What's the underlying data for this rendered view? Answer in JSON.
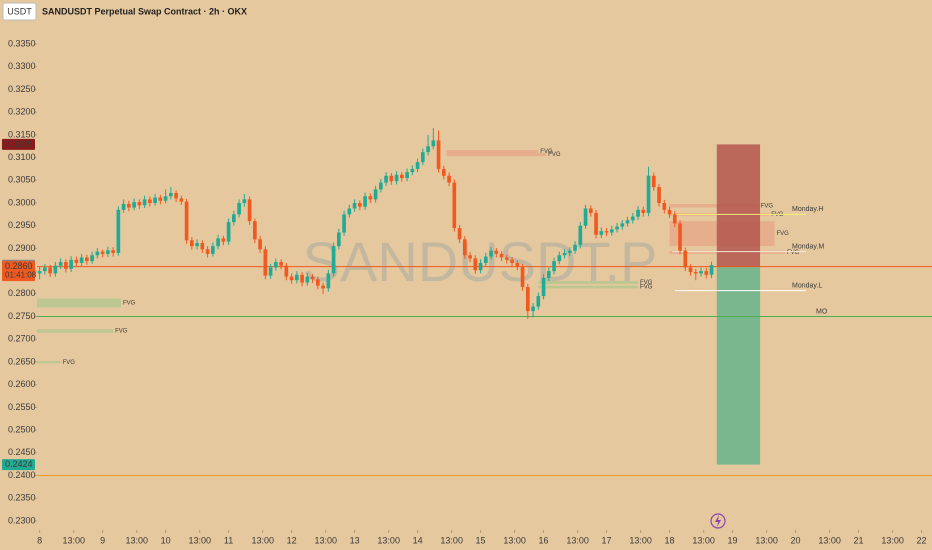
{
  "chart_data": {
    "type": "candlestick",
    "title": "SANDUSDT Perpetual Swap Contract · 2h · OKX",
    "currency": "USDT",
    "watermark": "SANDUSDT.P",
    "up_color": "#22ab94",
    "down_color": "#f0591f",
    "grid": false,
    "xlim": [
      -1,
      340
    ],
    "xticks": [
      {
        "value": 0,
        "label": "8"
      },
      {
        "value": 13,
        "label": "13:00"
      },
      {
        "value": 24,
        "label": "9"
      },
      {
        "value": 37,
        "label": "13:00"
      },
      {
        "value": 48,
        "label": "10"
      },
      {
        "value": 61,
        "label": "13:00"
      },
      {
        "value": 72,
        "label": "11"
      },
      {
        "value": 85,
        "label": "13:00"
      },
      {
        "value": 96,
        "label": "12"
      },
      {
        "value": 109,
        "label": "13:00"
      },
      {
        "value": 120,
        "label": "13"
      },
      {
        "value": 133,
        "label": "13:00"
      },
      {
        "value": 144,
        "label": "14"
      },
      {
        "value": 157,
        "label": "13:00"
      },
      {
        "value": 168,
        "label": "15"
      },
      {
        "value": 181,
        "label": "13:00"
      },
      {
        "value": 192,
        "label": "16"
      },
      {
        "value": 205,
        "label": "13:00"
      },
      {
        "value": 216,
        "label": "17"
      },
      {
        "value": 229,
        "label": "13:00"
      },
      {
        "value": 240,
        "label": "18"
      },
      {
        "value": 253,
        "label": "13:00"
      },
      {
        "value": 264,
        "label": "19"
      },
      {
        "value": 277,
        "label": "13:00"
      },
      {
        "value": 288,
        "label": "20"
      },
      {
        "value": 301,
        "label": "13:00"
      },
      {
        "value": 312,
        "label": "21"
      },
      {
        "value": 325,
        "label": "13:00"
      },
      {
        "value": 336,
        "label": "22"
      }
    ],
    "ylim": [
      0.228,
      0.3447
    ],
    "yticks": [
      {
        "value": 0.335,
        "label": "0.3350"
      },
      {
        "value": 0.33,
        "label": "0.3300"
      },
      {
        "value": 0.325,
        "label": "0.3250"
      },
      {
        "value": 0.32,
        "label": "0.3200"
      },
      {
        "value": 0.315,
        "label": "0.3150"
      },
      {
        "value": 0.31,
        "label": "0.3100"
      },
      {
        "value": 0.305,
        "label": "0.3050"
      },
      {
        "value": 0.3,
        "label": "0.3000"
      },
      {
        "value": 0.295,
        "label": "0.2950"
      },
      {
        "value": 0.29,
        "label": "0.2900"
      },
      {
        "value": 0.285,
        "label": "0.2850"
      },
      {
        "value": 0.28,
        "label": "0.2800"
      },
      {
        "value": 0.275,
        "label": "0.2750"
      },
      {
        "value": 0.27,
        "label": "0.2700"
      },
      {
        "value": 0.265,
        "label": "0.2650"
      },
      {
        "value": 0.26,
        "label": "0.2600"
      },
      {
        "value": 0.255,
        "label": "0.2550"
      },
      {
        "value": 0.25,
        "label": "0.2500"
      },
      {
        "value": 0.245,
        "label": "0.2450"
      },
      {
        "value": 0.24,
        "label": "0.2400"
      },
      {
        "value": 0.235,
        "label": "0.2350"
      },
      {
        "value": 0.23,
        "label": "0.2300"
      }
    ],
    "candles": [
      [
        0,
        0.2845,
        0.286,
        0.2832,
        0.285
      ],
      [
        2,
        0.285,
        0.2866,
        0.2842,
        0.2858
      ],
      [
        4,
        0.2858,
        0.2864,
        0.2837,
        0.2845
      ],
      [
        6,
        0.2845,
        0.287,
        0.2838,
        0.2862
      ],
      [
        8,
        0.2862,
        0.2878,
        0.2855,
        0.287
      ],
      [
        10,
        0.287,
        0.2876,
        0.2847,
        0.2855
      ],
      [
        12,
        0.2855,
        0.2883,
        0.2848,
        0.2875
      ],
      [
        14,
        0.2875,
        0.2882,
        0.286,
        0.2868
      ],
      [
        16,
        0.2868,
        0.2888,
        0.2861,
        0.288
      ],
      [
        18,
        0.288,
        0.2886,
        0.2864,
        0.2872
      ],
      [
        20,
        0.2872,
        0.2893,
        0.2866,
        0.2885
      ],
      [
        22,
        0.2885,
        0.2901,
        0.2878,
        0.2893
      ],
      [
        24,
        0.2893,
        0.2898,
        0.288,
        0.2888
      ],
      [
        26,
        0.2888,
        0.2904,
        0.2881,
        0.2896
      ],
      [
        28,
        0.2896,
        0.2903,
        0.2882,
        0.289
      ],
      [
        30,
        0.289,
        0.2993,
        0.2884,
        0.2985
      ],
      [
        32,
        0.2985,
        0.3008,
        0.2978,
        0.2998
      ],
      [
        34,
        0.2998,
        0.3005,
        0.2982,
        0.299
      ],
      [
        36,
        0.299,
        0.301,
        0.2984,
        0.3002
      ],
      [
        38,
        0.3002,
        0.3008,
        0.2987,
        0.2995
      ],
      [
        40,
        0.2995,
        0.3016,
        0.2989,
        0.3008
      ],
      [
        42,
        0.3008,
        0.3014,
        0.2992,
        0.3
      ],
      [
        44,
        0.3,
        0.302,
        0.2994,
        0.3012
      ],
      [
        46,
        0.3012,
        0.3018,
        0.2997,
        0.3005
      ],
      [
        48,
        0.3005,
        0.303,
        0.2999,
        0.3015
      ],
      [
        50,
        0.3015,
        0.3035,
        0.3008,
        0.3022
      ],
      [
        52,
        0.3022,
        0.3028,
        0.3002,
        0.301
      ],
      [
        54,
        0.301,
        0.3016,
        0.2996,
        0.3003
      ],
      [
        56,
        0.3003,
        0.3009,
        0.291,
        0.2918
      ],
      [
        58,
        0.2918,
        0.2925,
        0.2897,
        0.2905
      ],
      [
        60,
        0.2905,
        0.292,
        0.2898,
        0.2912
      ],
      [
        62,
        0.2912,
        0.2918,
        0.289,
        0.2898
      ],
      [
        64,
        0.2898,
        0.2905,
        0.288,
        0.2888
      ],
      [
        66,
        0.2888,
        0.2913,
        0.2882,
        0.2905
      ],
      [
        68,
        0.2905,
        0.293,
        0.2898,
        0.2922
      ],
      [
        70,
        0.2922,
        0.2928,
        0.2907,
        0.2915
      ],
      [
        72,
        0.2915,
        0.2966,
        0.2908,
        0.2958
      ],
      [
        74,
        0.2958,
        0.2983,
        0.295,
        0.2975
      ],
      [
        76,
        0.2975,
        0.3008,
        0.2968,
        0.3
      ],
      [
        78,
        0.3,
        0.302,
        0.2992,
        0.3008
      ],
      [
        80,
        0.3008,
        0.3014,
        0.2952,
        0.296
      ],
      [
        82,
        0.296,
        0.2966,
        0.2912,
        0.292
      ],
      [
        84,
        0.292,
        0.2927,
        0.289,
        0.2898
      ],
      [
        86,
        0.2898,
        0.2905,
        0.2832,
        0.284
      ],
      [
        88,
        0.284,
        0.2866,
        0.2833,
        0.2858
      ],
      [
        90,
        0.2858,
        0.2878,
        0.2851,
        0.287
      ],
      [
        92,
        0.287,
        0.2876,
        0.2854,
        0.2862
      ],
      [
        94,
        0.2862,
        0.2868,
        0.283,
        0.2838
      ],
      [
        96,
        0.2838,
        0.2845,
        0.2822,
        0.283
      ],
      [
        98,
        0.283,
        0.285,
        0.2823,
        0.2842
      ],
      [
        100,
        0.2842,
        0.2848,
        0.2817,
        0.2825
      ],
      [
        102,
        0.2825,
        0.2846,
        0.2818,
        0.2838
      ],
      [
        104,
        0.2838,
        0.2844,
        0.2824,
        0.2832
      ],
      [
        106,
        0.2832,
        0.2838,
        0.281,
        0.2818
      ],
      [
        108,
        0.2818,
        0.2824,
        0.28,
        0.2812
      ],
      [
        110,
        0.2812,
        0.2853,
        0.2805,
        0.2845
      ],
      [
        112,
        0.2845,
        0.2913,
        0.2838,
        0.2905
      ],
      [
        114,
        0.2905,
        0.2943,
        0.2898,
        0.2935
      ],
      [
        116,
        0.2935,
        0.2983,
        0.2928,
        0.2975
      ],
      [
        118,
        0.2975,
        0.2996,
        0.2968,
        0.2988
      ],
      [
        120,
        0.2988,
        0.3008,
        0.2981,
        0.3
      ],
      [
        122,
        0.3,
        0.3006,
        0.2984,
        0.2992
      ],
      [
        124,
        0.2992,
        0.3023,
        0.2985,
        0.3015
      ],
      [
        126,
        0.3015,
        0.3021,
        0.3,
        0.3008
      ],
      [
        128,
        0.3008,
        0.3038,
        0.3001,
        0.303
      ],
      [
        130,
        0.303,
        0.3053,
        0.3023,
        0.3045
      ],
      [
        132,
        0.3045,
        0.3068,
        0.3038,
        0.306
      ],
      [
        134,
        0.306,
        0.3066,
        0.304,
        0.3048
      ],
      [
        136,
        0.3048,
        0.307,
        0.3041,
        0.3062
      ],
      [
        138,
        0.3062,
        0.3068,
        0.3047,
        0.3055
      ],
      [
        140,
        0.3055,
        0.3076,
        0.3048,
        0.3068
      ],
      [
        142,
        0.3068,
        0.3083,
        0.3061,
        0.3075
      ],
      [
        144,
        0.3075,
        0.3098,
        0.3068,
        0.309
      ],
      [
        146,
        0.309,
        0.312,
        0.3083,
        0.3112
      ],
      [
        148,
        0.3112,
        0.315,
        0.3105,
        0.3125
      ],
      [
        150,
        0.3125,
        0.3165,
        0.3118,
        0.3138
      ],
      [
        152,
        0.3138,
        0.316,
        0.3067,
        0.3075
      ],
      [
        154,
        0.3075,
        0.3082,
        0.3052,
        0.306
      ],
      [
        156,
        0.306,
        0.3067,
        0.3037,
        0.3045
      ],
      [
        158,
        0.3045,
        0.3052,
        0.2937,
        0.2945
      ],
      [
        160,
        0.2945,
        0.2952,
        0.2912,
        0.292
      ],
      [
        162,
        0.292,
        0.2927,
        0.2877,
        0.2885
      ],
      [
        164,
        0.2885,
        0.2892,
        0.287,
        0.2878
      ],
      [
        166,
        0.2878,
        0.2885,
        0.2844,
        0.2852
      ],
      [
        168,
        0.2852,
        0.2876,
        0.2845,
        0.2868
      ],
      [
        170,
        0.2868,
        0.289,
        0.2861,
        0.2882
      ],
      [
        172,
        0.2882,
        0.2903,
        0.2875,
        0.2895
      ],
      [
        174,
        0.2895,
        0.2901,
        0.288,
        0.2888
      ],
      [
        176,
        0.2888,
        0.2894,
        0.2872,
        0.288
      ],
      [
        178,
        0.288,
        0.2886,
        0.2867,
        0.2875
      ],
      [
        180,
        0.2875,
        0.2881,
        0.286,
        0.2868
      ],
      [
        182,
        0.2868,
        0.2874,
        0.2852,
        0.286
      ],
      [
        184,
        0.286,
        0.2866,
        0.2807,
        0.2815
      ],
      [
        186,
        0.2815,
        0.2822,
        0.2745,
        0.2762
      ],
      [
        188,
        0.2762,
        0.278,
        0.2748,
        0.2772
      ],
      [
        190,
        0.2772,
        0.2803,
        0.2765,
        0.2795
      ],
      [
        192,
        0.2795,
        0.2843,
        0.2788,
        0.2835
      ],
      [
        194,
        0.2835,
        0.2858,
        0.2828,
        0.285
      ],
      [
        196,
        0.285,
        0.288,
        0.2843,
        0.2872
      ],
      [
        198,
        0.2872,
        0.2893,
        0.2865,
        0.2885
      ],
      [
        200,
        0.2885,
        0.2898,
        0.2878,
        0.289
      ],
      [
        202,
        0.289,
        0.2903,
        0.2883,
        0.2895
      ],
      [
        204,
        0.2895,
        0.2916,
        0.2888,
        0.2908
      ],
      [
        206,
        0.2908,
        0.2958,
        0.29,
        0.295
      ],
      [
        208,
        0.295,
        0.2996,
        0.2943,
        0.2988
      ],
      [
        210,
        0.2988,
        0.2995,
        0.297,
        0.2978
      ],
      [
        212,
        0.2978,
        0.2985,
        0.2922,
        0.293
      ],
      [
        214,
        0.293,
        0.2946,
        0.2923,
        0.2938
      ],
      [
        216,
        0.2938,
        0.2945,
        0.2927,
        0.2935
      ],
      [
        218,
        0.2935,
        0.295,
        0.2928,
        0.2942
      ],
      [
        220,
        0.2942,
        0.2956,
        0.2935,
        0.2948
      ],
      [
        222,
        0.2948,
        0.2963,
        0.2941,
        0.2955
      ],
      [
        224,
        0.2955,
        0.297,
        0.2948,
        0.2962
      ],
      [
        226,
        0.2962,
        0.2978,
        0.2955,
        0.297
      ],
      [
        228,
        0.297,
        0.2993,
        0.2963,
        0.2985
      ],
      [
        230,
        0.2985,
        0.2992,
        0.297,
        0.2978
      ],
      [
        232,
        0.2978,
        0.308,
        0.2971,
        0.306
      ],
      [
        234,
        0.306,
        0.3067,
        0.3027,
        0.3035
      ],
      [
        236,
        0.3035,
        0.3042,
        0.2992,
        0.3
      ],
      [
        238,
        0.3,
        0.3007,
        0.2977,
        0.2985
      ],
      [
        240,
        0.2985,
        0.2992,
        0.2967,
        0.2975
      ],
      [
        242,
        0.2975,
        0.2982,
        0.2947,
        0.2955
      ],
      [
        244,
        0.2955,
        0.2962,
        0.2887,
        0.2895
      ],
      [
        246,
        0.2895,
        0.2902,
        0.285,
        0.2858
      ],
      [
        248,
        0.2858,
        0.2865,
        0.284,
        0.2848
      ],
      [
        250,
        0.2848,
        0.2855,
        0.283,
        0.2845
      ],
      [
        252,
        0.2845,
        0.2858,
        0.2838,
        0.285
      ],
      [
        254,
        0.285,
        0.2857,
        0.2834,
        0.2842
      ],
      [
        256,
        0.2842,
        0.2871,
        0.2835,
        0.2863
      ]
    ],
    "zones": [
      {
        "label": "FVG",
        "t0": 155,
        "t1": 190,
        "y0": 0.3117,
        "y1": 0.311,
        "color": "#e8605a"
      },
      {
        "label": "FVG",
        "t0": 155,
        "t1": 193,
        "y0": 0.311,
        "y1": 0.3103,
        "color": "#e8605a"
      },
      {
        "label": "FVG",
        "t0": -1,
        "t1": 31,
        "y0": 0.279,
        "y1": 0.277,
        "color": "#3fc46a"
      },
      {
        "label": "FVG",
        "t0": -1,
        "t1": 28,
        "y0": 0.2722,
        "y1": 0.2714,
        "color": "#3fc46a"
      },
      {
        "label": "FVG",
        "t0": -1,
        "t1": 8,
        "y0": 0.2652,
        "y1": 0.2647,
        "color": "#3fc46a"
      },
      {
        "label": "FVG",
        "t0": 190,
        "t1": 228,
        "y0": 0.2828,
        "y1": 0.2822,
        "color": "#3fc46a"
      },
      {
        "label": "FVG",
        "t0": 190,
        "t1": 228,
        "y0": 0.2818,
        "y1": 0.2812,
        "color": "#3fc46a"
      },
      {
        "label": "FVG",
        "t0": 240,
        "t1": 274,
        "y0": 0.2998,
        "y1": 0.299,
        "color": "#e8605a"
      },
      {
        "label": "FVG",
        "t0": 240,
        "t1": 278,
        "y0": 0.2978,
        "y1": 0.2972,
        "color": "#e8605a"
      },
      {
        "label": "FVG",
        "t0": 240,
        "t1": 280,
        "y0": 0.296,
        "y1": 0.2905,
        "color": "#e8605a"
      },
      {
        "label": "FVG",
        "t0": 240,
        "t1": 284,
        "y0": 0.2895,
        "y1": 0.2888,
        "color": "#e8605a"
      }
    ],
    "levels": [
      {
        "label": "Monday.H",
        "value": 0.2975,
        "t0": 241,
        "t1": 292,
        "color": "#f3f07a"
      },
      {
        "label": "Monday.M",
        "value": 0.2893,
        "t0": 241,
        "t1": 292,
        "color": "#f5ead8"
      },
      {
        "label": "Monday.L",
        "value": 0.2807,
        "t0": 242,
        "t1": 292,
        "color": "#ffffff"
      },
      {
        "label": "MO",
        "value": 0.275,
        "color": "#4caf50"
      },
      {
        "value": 0.286,
        "color": "#f0591f"
      },
      {
        "value": 0.24,
        "color": "#f59a23"
      }
    ],
    "position": {
      "t0": 258,
      "t1": 274.5,
      "entry": 0.286,
      "stop": 0.3129,
      "target": 0.2424
    },
    "price_labels": [
      {
        "value": 0.3129,
        "label": "0.3129",
        "color": "#8b1a1a"
      },
      {
        "value": 0.2863,
        "label": "0.2863",
        "color": "#8a8a8a"
      },
      {
        "value": 0.286,
        "label": "0.2860",
        "color": "#f0591f",
        "countdown": "01:41:08"
      },
      {
        "value": 0.2424,
        "label": "0.2424",
        "color": "#22ab94"
      }
    ]
  }
}
